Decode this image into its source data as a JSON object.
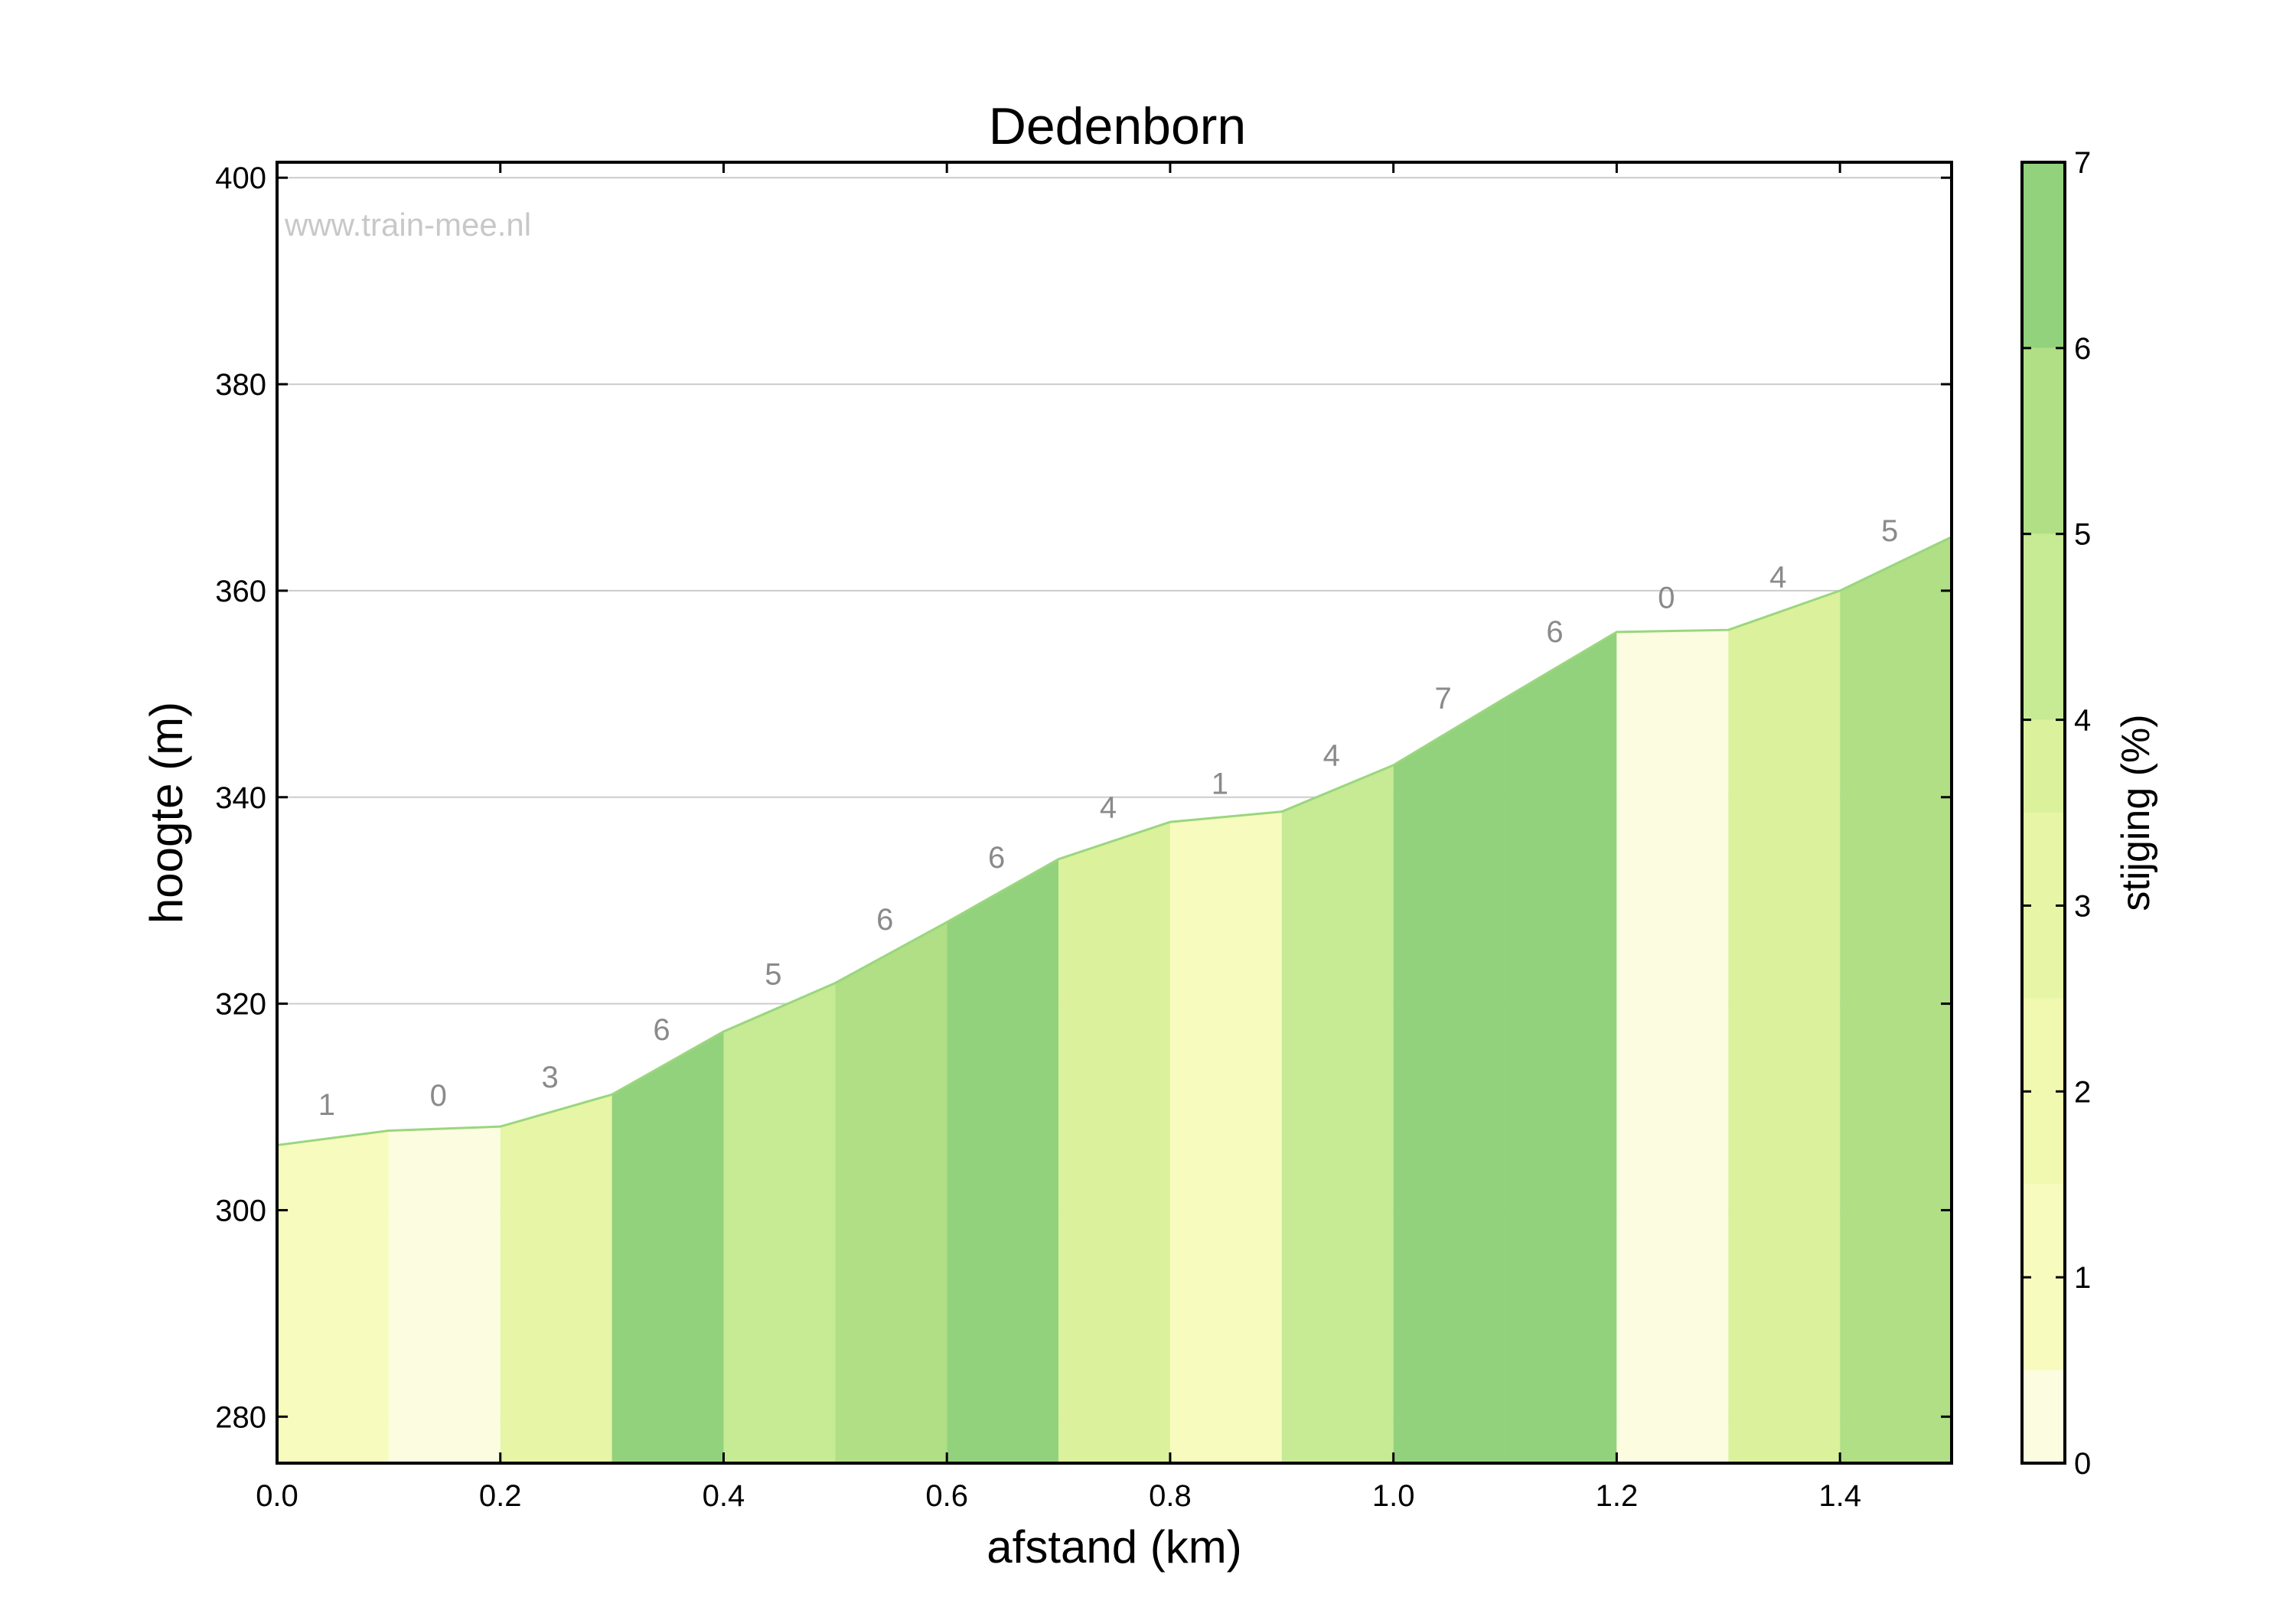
{
  "chart_data": {
    "type": "area",
    "title": "Dedenborn",
    "xlabel": "afstand (km)",
    "ylabel": "hoogte (m)",
    "watermark": "www.train-mee.nl",
    "xlim": [
      0,
      1.5
    ],
    "ylim": [
      275.5,
      401.5
    ],
    "x_ticks": [
      0.0,
      0.2,
      0.4,
      0.6,
      0.8,
      1.0,
      1.2,
      1.4
    ],
    "x_tick_labels": [
      "0.0",
      "0.2",
      "0.4",
      "0.6",
      "0.8",
      "1.0",
      "1.2",
      "1.4"
    ],
    "y_ticks": [
      280,
      300,
      320,
      340,
      360,
      380,
      400
    ],
    "y_tick_labels": [
      "280",
      "300",
      "320",
      "340",
      "360",
      "380",
      "400"
    ],
    "grid": "horizontal",
    "profile": [
      {
        "x": 0.0,
        "y": 306.3
      },
      {
        "x": 0.1,
        "y": 307.7
      },
      {
        "x": 0.2,
        "y": 308.1
      },
      {
        "x": 0.3,
        "y": 311.2
      },
      {
        "x": 0.4,
        "y": 317.3
      },
      {
        "x": 0.5,
        "y": 322.0
      },
      {
        "x": 0.6,
        "y": 327.9
      },
      {
        "x": 0.7,
        "y": 334.0
      },
      {
        "x": 0.8,
        "y": 337.6
      },
      {
        "x": 0.9,
        "y": 338.6
      },
      {
        "x": 1.0,
        "y": 343.1
      },
      {
        "x": 1.1,
        "y": 349.6
      },
      {
        "x": 1.2,
        "y": 356.0
      },
      {
        "x": 1.3,
        "y": 356.2
      },
      {
        "x": 1.4,
        "y": 360.0
      },
      {
        "x": 1.5,
        "y": 365.2
      }
    ],
    "segments": [
      {
        "x_start": 0.0,
        "x_end": 0.1,
        "gradient": 1.4,
        "label": "1"
      },
      {
        "x_start": 0.1,
        "x_end": 0.2,
        "gradient": 0.4,
        "label": "0"
      },
      {
        "x_start": 0.2,
        "x_end": 0.3,
        "gradient": 3.1,
        "label": "3"
      },
      {
        "x_start": 0.3,
        "x_end": 0.4,
        "gradient": 6.1,
        "label": "6"
      },
      {
        "x_start": 0.4,
        "x_end": 0.5,
        "gradient": 4.7,
        "label": "5"
      },
      {
        "x_start": 0.5,
        "x_end": 0.6,
        "gradient": 5.9,
        "label": "6"
      },
      {
        "x_start": 0.6,
        "x_end": 0.7,
        "gradient": 6.1,
        "label": "6"
      },
      {
        "x_start": 0.7,
        "x_end": 0.8,
        "gradient": 3.6,
        "label": "4"
      },
      {
        "x_start": 0.8,
        "x_end": 0.9,
        "gradient": 1.0,
        "label": "1"
      },
      {
        "x_start": 0.9,
        "x_end": 1.0,
        "gradient": 4.5,
        "label": "4"
      },
      {
        "x_start": 1.0,
        "x_end": 1.1,
        "gradient": 6.5,
        "label": "7"
      },
      {
        "x_start": 1.1,
        "x_end": 1.2,
        "gradient": 6.4,
        "label": "6"
      },
      {
        "x_start": 1.2,
        "x_end": 1.3,
        "gradient": 0.2,
        "label": "0"
      },
      {
        "x_start": 1.3,
        "x_end": 1.4,
        "gradient": 3.8,
        "label": "4"
      },
      {
        "x_start": 1.4,
        "x_end": 1.5,
        "gradient": 5.2,
        "label": "5"
      }
    ],
    "colorbar": {
      "label": "stijging (%)",
      "range": [
        0,
        7
      ],
      "ticks": [
        0,
        1,
        2,
        3,
        4,
        5,
        6,
        7
      ],
      "tick_labels": [
        "0",
        "1",
        "2",
        "3",
        "4",
        "5",
        "6",
        "7"
      ],
      "levels": [
        {
          "from": 0.0,
          "to": 0.5,
          "color": "#fcfce0"
        },
        {
          "from": 0.5,
          "to": 1.5,
          "color": "#f7fcbe"
        },
        {
          "from": 1.5,
          "to": 2.5,
          "color": "#f1f9b0"
        },
        {
          "from": 2.5,
          "to": 3.5,
          "color": "#e6f5a6"
        },
        {
          "from": 3.5,
          "to": 4.0,
          "color": "#dbf19c"
        },
        {
          "from": 4.0,
          "to": 5.0,
          "color": "#c7ea94"
        },
        {
          "from": 5.0,
          "to": 6.0,
          "color": "#b0df86"
        },
        {
          "from": 6.0,
          "to": 7.0,
          "color": "#92d27c"
        }
      ]
    },
    "colors": {
      "profile_line": "#9ad67e",
      "grid": "#cccccc",
      "segment_label": "#8a8a8a",
      "watermark": "#c8c8c8",
      "axis": "#000000"
    }
  }
}
